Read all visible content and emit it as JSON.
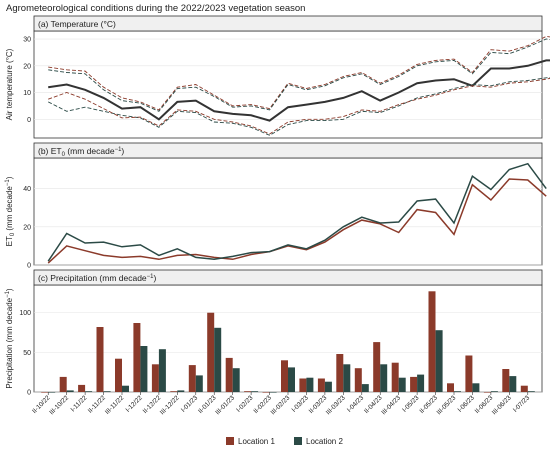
{
  "figure_title": "Agrometeorological conditions during the 2022/2023 vegetation season",
  "colors": {
    "location1": "#8B3A2A",
    "location2": "#2B4A46",
    "temp_mean": "#333333",
    "grid": "#e6e6e6"
  },
  "legend": {
    "location1": "Location 1",
    "location2": "Location 2",
    "placement": "bottom-center"
  },
  "chart_data": [
    {
      "type": "line",
      "title": "(a) Temperature (°C)",
      "ylabel": "Air temperature (°C)",
      "ylim": [
        -7,
        33
      ],
      "yticks": [
        "0",
        "10",
        "20",
        "30"
      ],
      "series": [
        {
          "values": [
            12,
            13,
            11,
            8,
            4,
            4.5,
            0,
            6.5,
            7,
            3,
            2,
            1.5,
            -0.5,
            4.5,
            5.5,
            6.5,
            8,
            10.5,
            7,
            10,
            13.5,
            14.5,
            15,
            12.5,
            19,
            19,
            20,
            22,
            22
          ]
        },
        {
          "values": [
            19.5,
            18.5,
            18,
            12,
            8,
            6.5,
            3.5,
            12,
            13,
            9,
            5,
            5.5,
            4,
            13.5,
            11.5,
            13,
            16,
            17.5,
            13.5,
            16.5,
            20.5,
            22,
            22.5,
            17.5,
            26,
            25.5,
            27.5,
            31,
            30
          ]
        },
        {
          "values": [
            18.5,
            17.5,
            17,
            11,
            7,
            6,
            3,
            11.5,
            12,
            8.5,
            4.5,
            5,
            3.5,
            13,
            11,
            12.5,
            15.5,
            17,
            13,
            16,
            20,
            21.5,
            22,
            17,
            25,
            24.5,
            27,
            30,
            29
          ]
        },
        {
          "values": [
            6.5,
            3,
            4.5,
            3,
            1.5,
            0.5,
            -3,
            3,
            2.5,
            -1,
            -1.5,
            -3,
            -6,
            -2,
            -0.5,
            -0.5,
            0,
            3,
            2.5,
            5,
            8,
            9.5,
            11.5,
            13,
            12.5,
            14,
            14.5,
            15.5,
            16
          ]
        },
        {
          "values": [
            7.5,
            10,
            7.5,
            4,
            0.5,
            0.8,
            -2.5,
            3.5,
            3,
            0,
            -1,
            -2.5,
            -5.5,
            -1,
            0,
            0,
            1,
            3.5,
            3,
            5.5,
            7.5,
            9,
            11,
            12.5,
            12,
            13.5,
            14,
            15,
            16.5
          ]
        }
      ]
    },
    {
      "type": "line",
      "title": "(b) ET",
      "title_sub": "0",
      "title_unit": " (mm decade",
      "title_sup": "−1",
      "title_close": ")",
      "ylabel": "ET",
      "ylabel_sub": "0",
      "ylabel_unit": " (mm decade",
      "ylabel_sup": "−1",
      "ylabel_close": ")",
      "ylim": [
        0,
        56
      ],
      "yticks": [
        "0",
        "20",
        "40"
      ],
      "series": [
        {
          "name": "Location 1",
          "values": [
            1,
            10,
            7.5,
            5,
            4,
            4.5,
            3,
            5,
            5.5,
            4,
            3,
            5.5,
            7,
            10,
            8,
            12,
            18.5,
            23.5,
            21.5,
            17,
            29,
            27.5,
            16,
            42,
            34,
            45,
            44.5,
            36
          ]
        },
        {
          "name": "Location 2",
          "values": [
            2,
            16.5,
            11.5,
            12,
            9.5,
            10.5,
            5,
            8.5,
            4,
            3,
            4.5,
            6.5,
            7,
            10.5,
            8.5,
            13,
            20,
            25,
            22,
            22.5,
            33.5,
            34.5,
            22,
            46.5,
            39.5,
            50,
            53,
            40
          ]
        }
      ]
    },
    {
      "type": "bar",
      "title": "(c) Precipitation (mm decade",
      "title_sup": "−1",
      "title_close": ")",
      "ylabel": "Precipitation (mm decade",
      "ylabel_sup": "−1",
      "ylabel_close": ")",
      "ylim": [
        0,
        135
      ],
      "yticks": [
        "0",
        "50",
        "100"
      ],
      "categories": [
        "II-10/22",
        "III-10/22",
        "I-11/22",
        "II-11/22",
        "III-11/22",
        "I-12/22",
        "II-12/22",
        "III-12/22",
        "I-01/23",
        "II-01/23",
        "III-01/23",
        "I-02/23",
        "II-02/23",
        "III-02/23",
        "I-03/23",
        "II-03/23",
        "III-03/23",
        "I-04/23",
        "II-04/23",
        "III-04/23",
        "I-05/23",
        "II-05/23",
        "III-05/23",
        "I-06/23",
        "II-06/23",
        "III-06/23",
        "I-07/23"
      ],
      "series": [
        {
          "name": "Location 1",
          "values": [
            0,
            19,
            9,
            82,
            42,
            87,
            35,
            1,
            34,
            100,
            43,
            1,
            0,
            40,
            17,
            17,
            48,
            30,
            63,
            37,
            19,
            127,
            11,
            46,
            0,
            29,
            8
          ]
        },
        {
          "name": "Location 2",
          "values": [
            0,
            2,
            1,
            1,
            8,
            58,
            54,
            2,
            21,
            81,
            30,
            1,
            0,
            31,
            18,
            13,
            35,
            10,
            35,
            18,
            22,
            78,
            1,
            11,
            1,
            20,
            1
          ]
        }
      ]
    }
  ]
}
